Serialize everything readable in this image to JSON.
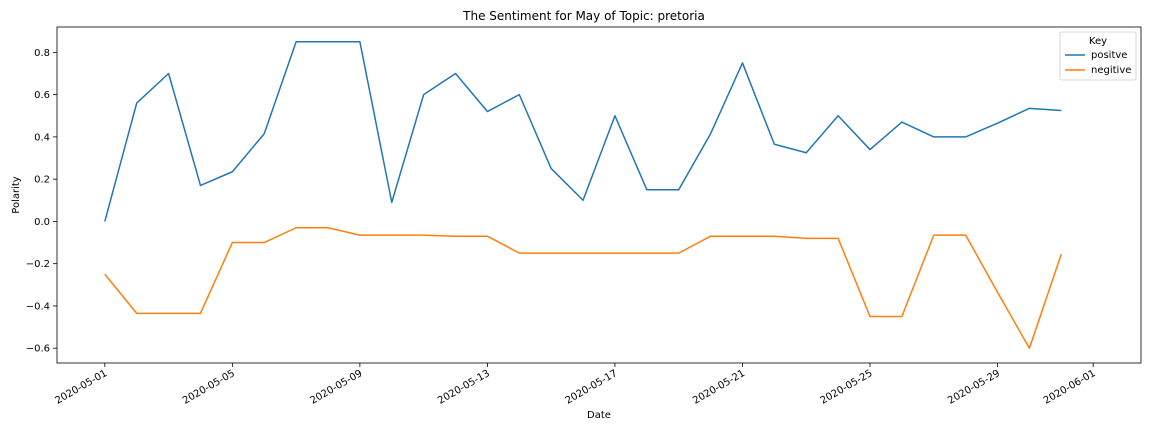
{
  "chart_data": {
    "type": "line",
    "title": "The Sentiment for May of Topic: pretoria",
    "xlabel": "Date",
    "ylabel": "Polarity",
    "x": [
      "2020-05-01",
      "2020-05-02",
      "2020-05-03",
      "2020-05-04",
      "2020-05-05",
      "2020-05-06",
      "2020-05-07",
      "2020-05-08",
      "2020-05-09",
      "2020-05-10",
      "2020-05-11",
      "2020-05-12",
      "2020-05-13",
      "2020-05-14",
      "2020-05-15",
      "2020-05-16",
      "2020-05-17",
      "2020-05-18",
      "2020-05-19",
      "2020-05-20",
      "2020-05-21",
      "2020-05-22",
      "2020-05-23",
      "2020-05-24",
      "2020-05-25",
      "2020-05-26",
      "2020-05-27",
      "2020-05-28",
      "2020-05-29",
      "2020-05-30",
      "2020-05-31"
    ],
    "series": [
      {
        "name": "positve",
        "color": "#1f77b4",
        "values": [
          0.0,
          0.56,
          0.7,
          0.17,
          0.235,
          0.415,
          0.85,
          0.85,
          0.85,
          0.09,
          0.6,
          0.7,
          0.52,
          0.6,
          0.25,
          0.1,
          0.5,
          0.15,
          0.15,
          0.415,
          0.75,
          0.365,
          0.325,
          0.5,
          0.34,
          0.47,
          0.4,
          0.4,
          0.465,
          0.535,
          0.525
        ]
      },
      {
        "name": "negitive",
        "color": "#ff7f0e",
        "values": [
          -0.25,
          -0.435,
          -0.435,
          -0.435,
          -0.1,
          -0.1,
          -0.03,
          -0.03,
          -0.065,
          -0.065,
          -0.065,
          -0.07,
          -0.07,
          -0.15,
          -0.15,
          -0.15,
          -0.15,
          -0.15,
          -0.15,
          -0.07,
          -0.07,
          -0.07,
          -0.08,
          -0.08,
          -0.45,
          -0.45,
          -0.065,
          -0.065,
          -0.335,
          -0.6,
          -0.155
        ]
      }
    ],
    "xlim": [
      "2020-05-01",
      "2020-06-01"
    ],
    "ylim": [
      -0.67,
      0.92
    ],
    "xticks": [
      "2020-05-01",
      "2020-05-05",
      "2020-05-09",
      "2020-05-13",
      "2020-05-17",
      "2020-05-21",
      "2020-05-25",
      "2020-05-29",
      "2020-06-01"
    ],
    "yticks": [
      -0.6,
      -0.4,
      -0.2,
      0.0,
      0.2,
      0.4,
      0.6,
      0.8
    ],
    "ytick_labels": [
      "−0.6",
      "−0.4",
      "−0.2",
      "0.0",
      "0.2",
      "0.4",
      "0.6",
      "0.8"
    ],
    "grid": false,
    "legend": {
      "title": "Key",
      "placement": "top-right"
    }
  }
}
